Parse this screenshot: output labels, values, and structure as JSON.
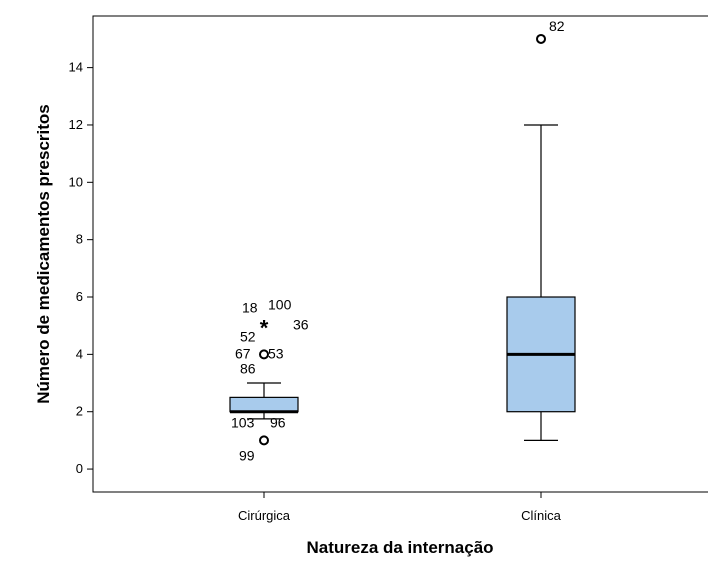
{
  "chart_data": {
    "type": "boxplot",
    "xlabel": "Natureza da internação",
    "ylabel": "Número de medicamentos prescritos",
    "ylim": [
      -0.8,
      15.8
    ],
    "yticks": [
      0,
      2,
      4,
      6,
      8,
      10,
      12,
      14
    ],
    "grid": false,
    "colors": {
      "box_fill": "#a8cbec",
      "stroke": "#000000",
      "frame": "#000000"
    },
    "groups": [
      {
        "category": "Cirúrgica",
        "min": 1.75,
        "q1": 2,
        "median": 2,
        "q3": 2.5,
        "max": 3,
        "outliers": [
          {
            "value": 4,
            "marker": "circle",
            "labels": [
              "67",
              "52",
              "53",
              "86"
            ]
          },
          {
            "value": 5,
            "marker": "star",
            "labels": [
              "18",
              "100",
              "36"
            ]
          },
          {
            "value": 1,
            "marker": "circle",
            "labels": [
              "103",
              "96",
              "99"
            ]
          }
        ]
      },
      {
        "category": "Clínica",
        "min": 1,
        "q1": 2,
        "median": 4,
        "q3": 6,
        "max": 12,
        "outliers": [
          {
            "value": 15,
            "marker": "circle",
            "labels": [
              "82"
            ]
          }
        ]
      }
    ]
  }
}
